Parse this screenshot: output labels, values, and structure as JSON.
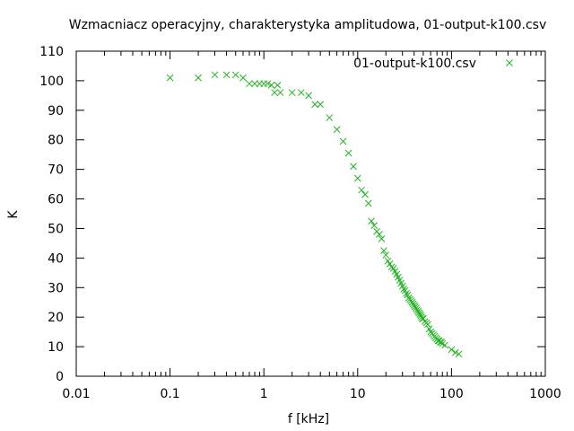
{
  "chart_data": {
    "type": "scatter",
    "title": "Wzmacniacz operacyjny, charakterystyka amplitudowa, 01-output-k100.csv",
    "xlabel": "f [kHz]",
    "ylabel": "K",
    "xscale": "log",
    "xlim": [
      0.01,
      1000
    ],
    "ylim": [
      0,
      110
    ],
    "xticks": [
      0.01,
      0.1,
      1,
      10,
      100,
      1000
    ],
    "xtick_labels": [
      "0.01",
      "0.1",
      "1",
      "10",
      "100",
      "1000"
    ],
    "yticks": [
      0,
      10,
      20,
      30,
      40,
      50,
      60,
      70,
      80,
      90,
      100,
      110
    ],
    "ytick_labels": [
      "0",
      "10",
      "20",
      "30",
      "40",
      "50",
      "60",
      "70",
      "80",
      "90",
      "100",
      "110"
    ],
    "grid": false,
    "legend_position": "top-right",
    "marker": "x",
    "color": "#22b322",
    "series": [
      {
        "name": "01-output-k100.csv",
        "points": [
          [
            0.1,
            101
          ],
          [
            0.2,
            101
          ],
          [
            0.3,
            102
          ],
          [
            0.4,
            102
          ],
          [
            0.5,
            102
          ],
          [
            0.6,
            101
          ],
          [
            0.7,
            99
          ],
          [
            0.8,
            99
          ],
          [
            0.9,
            99
          ],
          [
            1.0,
            99
          ],
          [
            1.1,
            99
          ],
          [
            1.2,
            98.5
          ],
          [
            1.3,
            96
          ],
          [
            1.4,
            98.5
          ],
          [
            1.5,
            96
          ],
          [
            2.0,
            96
          ],
          [
            2.5,
            96
          ],
          [
            3.0,
            95
          ],
          [
            3.5,
            92
          ],
          [
            4.0,
            92
          ],
          [
            5.0,
            87.5
          ],
          [
            6.0,
            83.5
          ],
          [
            7.0,
            79.5
          ],
          [
            8.0,
            75.5
          ],
          [
            9.0,
            71
          ],
          [
            10,
            67
          ],
          [
            11,
            63
          ],
          [
            12,
            61.5
          ],
          [
            13,
            58.5
          ],
          [
            14,
            52.5
          ],
          [
            15,
            51
          ],
          [
            16,
            49
          ],
          [
            17,
            48
          ],
          [
            18,
            46.5
          ],
          [
            19,
            42.5
          ],
          [
            20,
            41
          ],
          [
            21,
            39
          ],
          [
            22,
            38
          ],
          [
            23,
            37
          ],
          [
            24,
            36.5
          ],
          [
            25,
            35.5
          ],
          [
            26,
            34.5
          ],
          [
            27,
            33.5
          ],
          [
            28,
            32.5
          ],
          [
            29,
            31.5
          ],
          [
            30,
            30.5
          ],
          [
            31,
            29.5
          ],
          [
            32,
            29
          ],
          [
            33,
            28
          ],
          [
            34,
            27.5
          ],
          [
            35,
            26.5
          ],
          [
            36,
            26
          ],
          [
            37,
            25.5
          ],
          [
            38,
            25
          ],
          [
            39,
            24.5
          ],
          [
            40,
            24
          ],
          [
            41,
            23.5
          ],
          [
            42,
            23
          ],
          [
            43,
            22.5
          ],
          [
            44,
            22
          ],
          [
            45,
            21.5
          ],
          [
            46,
            21
          ],
          [
            47,
            20.5
          ],
          [
            48,
            20
          ],
          [
            49,
            19.5
          ],
          [
            50,
            19.5
          ],
          [
            52,
            18.5
          ],
          [
            54,
            18
          ],
          [
            56,
            17.5
          ],
          [
            58,
            16
          ],
          [
            60,
            15
          ],
          [
            62,
            14.5
          ],
          [
            64,
            14
          ],
          [
            66,
            13.5
          ],
          [
            68,
            13
          ],
          [
            70,
            12.5
          ],
          [
            72,
            12
          ],
          [
            74,
            12
          ],
          [
            76,
            11.5
          ],
          [
            78,
            11.5
          ],
          [
            80,
            11
          ],
          [
            85,
            10.5
          ],
          [
            100,
            9
          ],
          [
            110,
            8
          ],
          [
            120,
            7.5
          ]
        ]
      }
    ]
  }
}
